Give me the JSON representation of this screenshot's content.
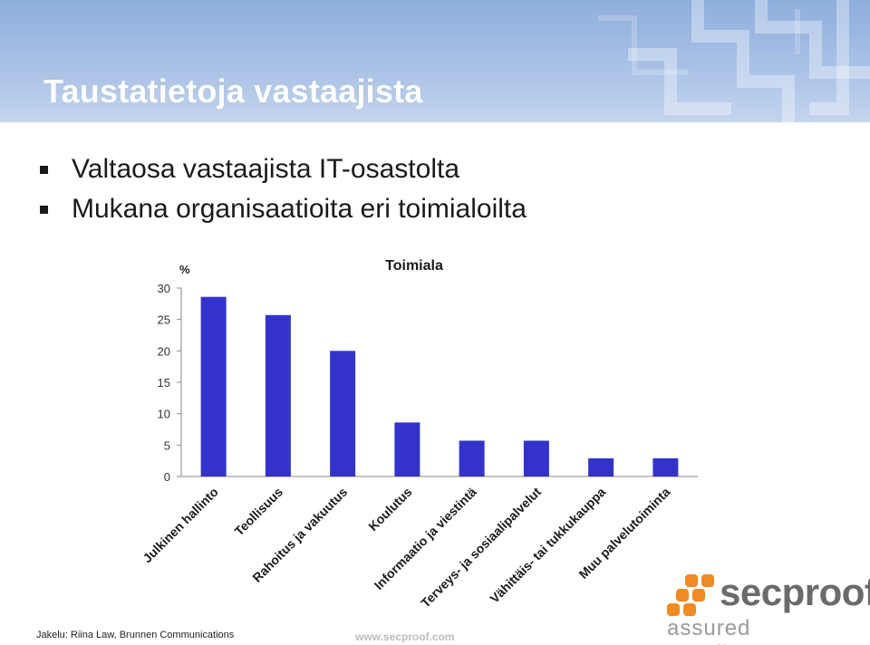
{
  "slide": {
    "title": "Taustatietoja vastaajista",
    "bullets": [
      "Valtaosa vastaajista IT-osastolta",
      "Mukana organisaatioita eri toimialoilta"
    ]
  },
  "chart_data": {
    "type": "bar",
    "title": "Toimiala",
    "ylabel": "%",
    "xlabel": "",
    "categories": [
      "Julkinen hallinto",
      "Teollisuus",
      "Rahoitus ja vakuutus",
      "Koulutus",
      "Informaatio ja viestintä",
      "Terveys- ja sosiaalipalvelut",
      "Vähittäis- tai tukkukauppa",
      "Muu palvelutoiminta"
    ],
    "values": [
      28.6,
      25.7,
      20.0,
      8.6,
      5.7,
      5.7,
      2.9,
      2.9
    ],
    "ylim": [
      0,
      30
    ],
    "yticks": [
      "0",
      "5",
      "10",
      "15",
      "20",
      "25",
      "30"
    ],
    "grid": false,
    "bar_color": "#3333cc"
  },
  "footer": {
    "source": "Jakelu: Riina Law, Brunnen Communications",
    "url": "www.secproof.com"
  },
  "logo": {
    "name": "secproof",
    "tagline": "assured excellence",
    "icon": "secproof-logo-icon",
    "accent_color": "#f08a24"
  }
}
